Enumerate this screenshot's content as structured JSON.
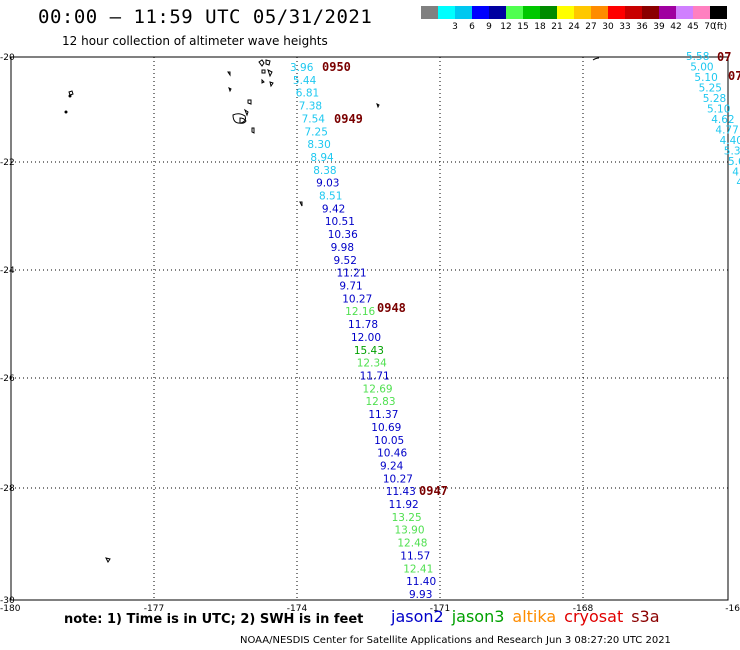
{
  "header": {
    "title": "00:00 – 11:59 UTC 05/31/2021",
    "subtitle": "12 hour collection of altimeter wave heights"
  },
  "colorbar": {
    "colors": [
      "#808080",
      "#00ffff",
      "#00c8f0",
      "#0000ff",
      "#0000a0",
      "#50ff50",
      "#00c800",
      "#008c00",
      "#ffff00",
      "#ffc800",
      "#ff8c00",
      "#ff0000",
      "#c80000",
      "#8b0000",
      "#a000a0",
      "#d080ff",
      "#ff80c0",
      "#000000"
    ],
    "labels": [
      "3",
      "6",
      "9",
      "12",
      "15",
      "18",
      "21",
      "24",
      "27",
      "30",
      "33",
      "36",
      "39",
      "42",
      "45",
      "70"
    ],
    "unit": "(ft)"
  },
  "axes": {
    "x_ticks": [
      "-180",
      "-177",
      "-174",
      "-171",
      "-168",
      "-16"
    ],
    "y_ticks": [
      "-20",
      "-22",
      "-24",
      "-26",
      "-28",
      "-30"
    ]
  },
  "pass_labels": [
    "0950",
    "0949",
    "0948",
    "0947",
    "07",
    "07"
  ],
  "track_main": [
    {
      "v": "3.96",
      "c": "#1ec8f0"
    },
    {
      "v": "5.44",
      "c": "#1ec8f0"
    },
    {
      "v": "6.81",
      "c": "#1ec8f0"
    },
    {
      "v": "7.38",
      "c": "#1ec8f0"
    },
    {
      "v": "7.54",
      "c": "#1ec8f0"
    },
    {
      "v": "7.25",
      "c": "#1ec8f0"
    },
    {
      "v": "8.30",
      "c": "#1ec8f0"
    },
    {
      "v": "8.94",
      "c": "#1ec8f0"
    },
    {
      "v": "8.38",
      "c": "#1ec8f0"
    },
    {
      "v": "9.03",
      "c": "#0000c8"
    },
    {
      "v": "8.51",
      "c": "#1ec8f0"
    },
    {
      "v": "9.42",
      "c": "#0000c8"
    },
    {
      "v": "10.51",
      "c": "#0000c8"
    },
    {
      "v": "10.36",
      "c": "#0000c8"
    },
    {
      "v": "9.98",
      "c": "#0000c8"
    },
    {
      "v": "9.52",
      "c": "#0000c8"
    },
    {
      "v": "11.21",
      "c": "#0000c8"
    },
    {
      "v": "9.71",
      "c": "#0000c8"
    },
    {
      "v": "10.27",
      "c": "#0000c8"
    },
    {
      "v": "12.16",
      "c": "#50e050"
    },
    {
      "v": "11.78",
      "c": "#0000c8"
    },
    {
      "v": "12.00",
      "c": "#0000c8"
    },
    {
      "v": "15.43",
      "c": "#00a000"
    },
    {
      "v": "12.34",
      "c": "#50e050"
    },
    {
      "v": "11.71",
      "c": "#0000c8"
    },
    {
      "v": "12.69",
      "c": "#50e050"
    },
    {
      "v": "12.83",
      "c": "#50e050"
    },
    {
      "v": "11.37",
      "c": "#0000c8"
    },
    {
      "v": "10.69",
      "c": "#0000c8"
    },
    {
      "v": "10.05",
      "c": "#0000c8"
    },
    {
      "v": "10.46",
      "c": "#0000c8"
    },
    {
      "v": "9.24",
      "c": "#0000c8"
    },
    {
      "v": "10.27",
      "c": "#0000c8"
    },
    {
      "v": "11.43",
      "c": "#0000c8"
    },
    {
      "v": "11.92",
      "c": "#0000c8"
    },
    {
      "v": "13.25",
      "c": "#50e050"
    },
    {
      "v": "13.90",
      "c": "#50e050"
    },
    {
      "v": "12.48",
      "c": "#50e050"
    },
    {
      "v": "11.57",
      "c": "#0000c8"
    },
    {
      "v": "12.41",
      "c": "#50e050"
    },
    {
      "v": "11.40",
      "c": "#0000c8"
    },
    {
      "v": "9.93",
      "c": "#0000c8"
    }
  ],
  "track_right": [
    {
      "v": "5.58",
      "c": "#1ec8f0"
    },
    {
      "v": "5.00",
      "c": "#1ec8f0"
    },
    {
      "v": "5.10",
      "c": "#1ec8f0"
    },
    {
      "v": "5.25",
      "c": "#1ec8f0"
    },
    {
      "v": "5.28",
      "c": "#1ec8f0"
    },
    {
      "v": "5.10",
      "c": "#1ec8f0"
    },
    {
      "v": "4.62",
      "c": "#1ec8f0"
    },
    {
      "v": "4.77",
      "c": "#1ec8f0"
    },
    {
      "v": "4.40",
      "c": "#1ec8f0"
    },
    {
      "v": "5.3",
      "c": "#1ec8f0"
    },
    {
      "v": "5.6",
      "c": "#1ec8f0"
    },
    {
      "v": "4.",
      "c": "#1ec8f0"
    },
    {
      "v": "4",
      "c": "#1ec8f0"
    }
  ],
  "footer": {
    "note": "note: 1) Time is in UTC; 2) SWH is in feet",
    "legend": [
      {
        "label": "jason2",
        "color": "#0000c8"
      },
      {
        "label": "jason3",
        "color": "#00a000"
      },
      {
        "label": "altika",
        "color": "#ff8c00"
      },
      {
        "label": "cryosat",
        "color": "#e00000"
      },
      {
        "label": "s3a",
        "color": "#8b0000"
      }
    ],
    "credit": "NOAA/NESDIS Center for Satellite Applications and Research   Jun  3 08:27:20 UTC 2021"
  }
}
